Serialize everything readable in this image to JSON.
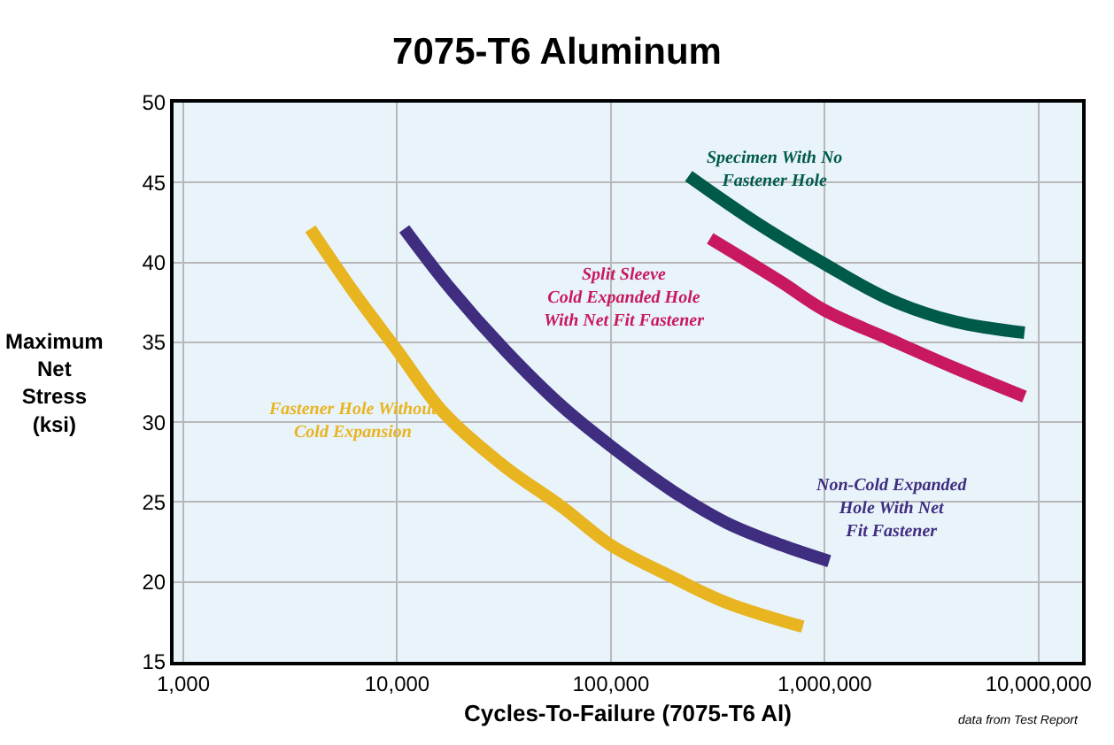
{
  "chart_data": {
    "type": "line",
    "title": "7075-T6 Aluminum",
    "xlabel": "Cycles-To-Failure (7075-T6 Al)",
    "ylabel": "Maximum\nNet\nStress\n(ksi)",
    "log": "x",
    "grid": true,
    "legend": false,
    "marker": "none",
    "line_style": "solid",
    "xlim": [
      900,
      16000000
    ],
    "xticks": [
      {
        "value": 1000,
        "label": "1,000"
      },
      {
        "value": 10000,
        "label": "10,000"
      },
      {
        "value": 100000,
        "label": "100,000"
      },
      {
        "value": 1000000,
        "label": "1,000,000"
      },
      {
        "value": 10000000,
        "label": "10,000,000"
      }
    ],
    "ylim": [
      15,
      50
    ],
    "yticks": [
      15,
      20,
      25,
      30,
      35,
      40,
      45,
      50
    ],
    "series": [
      {
        "name": "Fastener Hole Without\nCold Expansion",
        "color": "#e8b420",
        "x": [
          3930,
          6300,
          10000,
          16500,
          32000,
          59000,
          100000,
          194000,
          348000,
          790000
        ],
        "values": [
          42.1,
          38.1,
          34.5,
          30.6,
          27.2,
          24.7,
          22.3,
          20.3,
          18.7,
          17.2
        ]
      },
      {
        "name": "Non-Cold Expanded\nHole With Net\nFit Fastener",
        "color": "#3f2d80",
        "x": [
          10800,
          17400,
          32000,
          59000,
          100000,
          194000,
          348000,
          630000,
          1050000
        ],
        "values": [
          42.1,
          38.5,
          34.5,
          31.0,
          28.5,
          25.7,
          23.7,
          22.3,
          21.3
        ]
      },
      {
        "name": "Split Sleeve\nCold Expanded Hole\nWith Net Fit Fastener",
        "color": "#c8185e",
        "x": [
          291000,
          622000,
          1000000,
          2000000,
          4050000,
          8600000
        ],
        "values": [
          41.5,
          38.8,
          37.0,
          35.2,
          33.4,
          31.6
        ]
      },
      {
        "name": "Specimen With No\nFastener Hole",
        "color": "#005a4a",
        "x": [
          231000,
          465000,
          1000000,
          2000000,
          4050000,
          8600000
        ],
        "values": [
          45.4,
          42.6,
          39.9,
          37.7,
          36.3,
          35.6
        ]
      }
    ],
    "annotations": [
      "data from Test Report"
    ]
  }
}
